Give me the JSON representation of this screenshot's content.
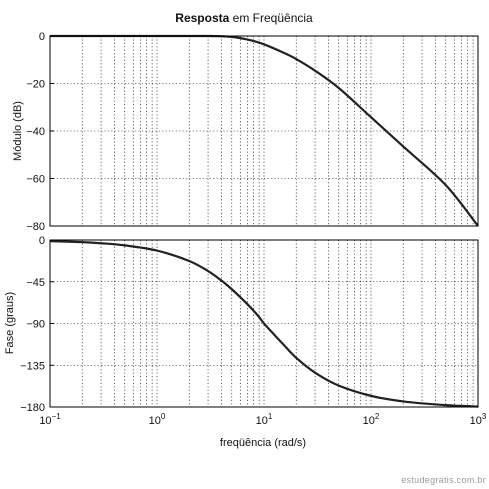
{
  "title_parts": {
    "bold": "Resposta",
    "rest": " em Freqüência"
  },
  "watermark": "estudegratis.com.br",
  "chart_data": [
    {
      "type": "line",
      "panel": "magnitude",
      "ylabel": "Módulo (dB)",
      "x_scale": "log",
      "xlim": [
        0.1,
        1000
      ],
      "ylim": [
        -80,
        0
      ],
      "yticks": [
        0,
        -20,
        -40,
        -60,
        -80
      ],
      "ytick_labels": [
        "0",
        "−20",
        "−40",
        "−60",
        "−80"
      ],
      "grid": true,
      "series": [
        {
          "x": [
            0.1,
            0.3,
            1,
            2,
            3,
            4,
            5,
            6,
            7,
            8,
            10,
            15,
            20,
            30,
            50,
            100,
            200,
            500,
            1000
          ],
          "values": [
            0,
            0,
            0,
            0,
            0,
            -0.1,
            -0.4,
            -0.9,
            -1.5,
            -2.1,
            -3.5,
            -6.9,
            -9.7,
            -14.6,
            -21.9,
            -34.2,
            -46.5,
            -62.8,
            -80
          ]
        }
      ]
    },
    {
      "type": "line",
      "panel": "phase",
      "ylabel": "Fase (graus)",
      "xlabel": "freqüência (rad/s)",
      "x_scale": "log",
      "xlim": [
        0.1,
        1000
      ],
      "ylim": [
        -180,
        0
      ],
      "yticks": [
        0,
        -45,
        -90,
        -135,
        -180
      ],
      "ytick_labels": [
        "0",
        "−45",
        "−90",
        "−135",
        "−180"
      ],
      "xtick_exponents": [
        "−1",
        "0",
        "1",
        "2",
        "3"
      ],
      "grid": true,
      "series": [
        {
          "x": [
            0.1,
            0.2,
            0.3,
            0.5,
            1,
            2,
            3,
            4,
            5,
            6,
            7,
            8,
            9,
            10,
            12,
            15,
            20,
            30,
            50,
            100,
            200,
            500,
            1000
          ],
          "values": [
            -1.2,
            -2.3,
            -3.5,
            -5.8,
            -11.4,
            -22.6,
            -33.5,
            -43.7,
            -53.1,
            -61.6,
            -69.2,
            -76.3,
            -83.0,
            -90.0,
            -100.0,
            -112.0,
            -127.0,
            -143.0,
            -157.0,
            -168.0,
            -174.0,
            -178.0,
            -179.5
          ]
        }
      ]
    }
  ]
}
